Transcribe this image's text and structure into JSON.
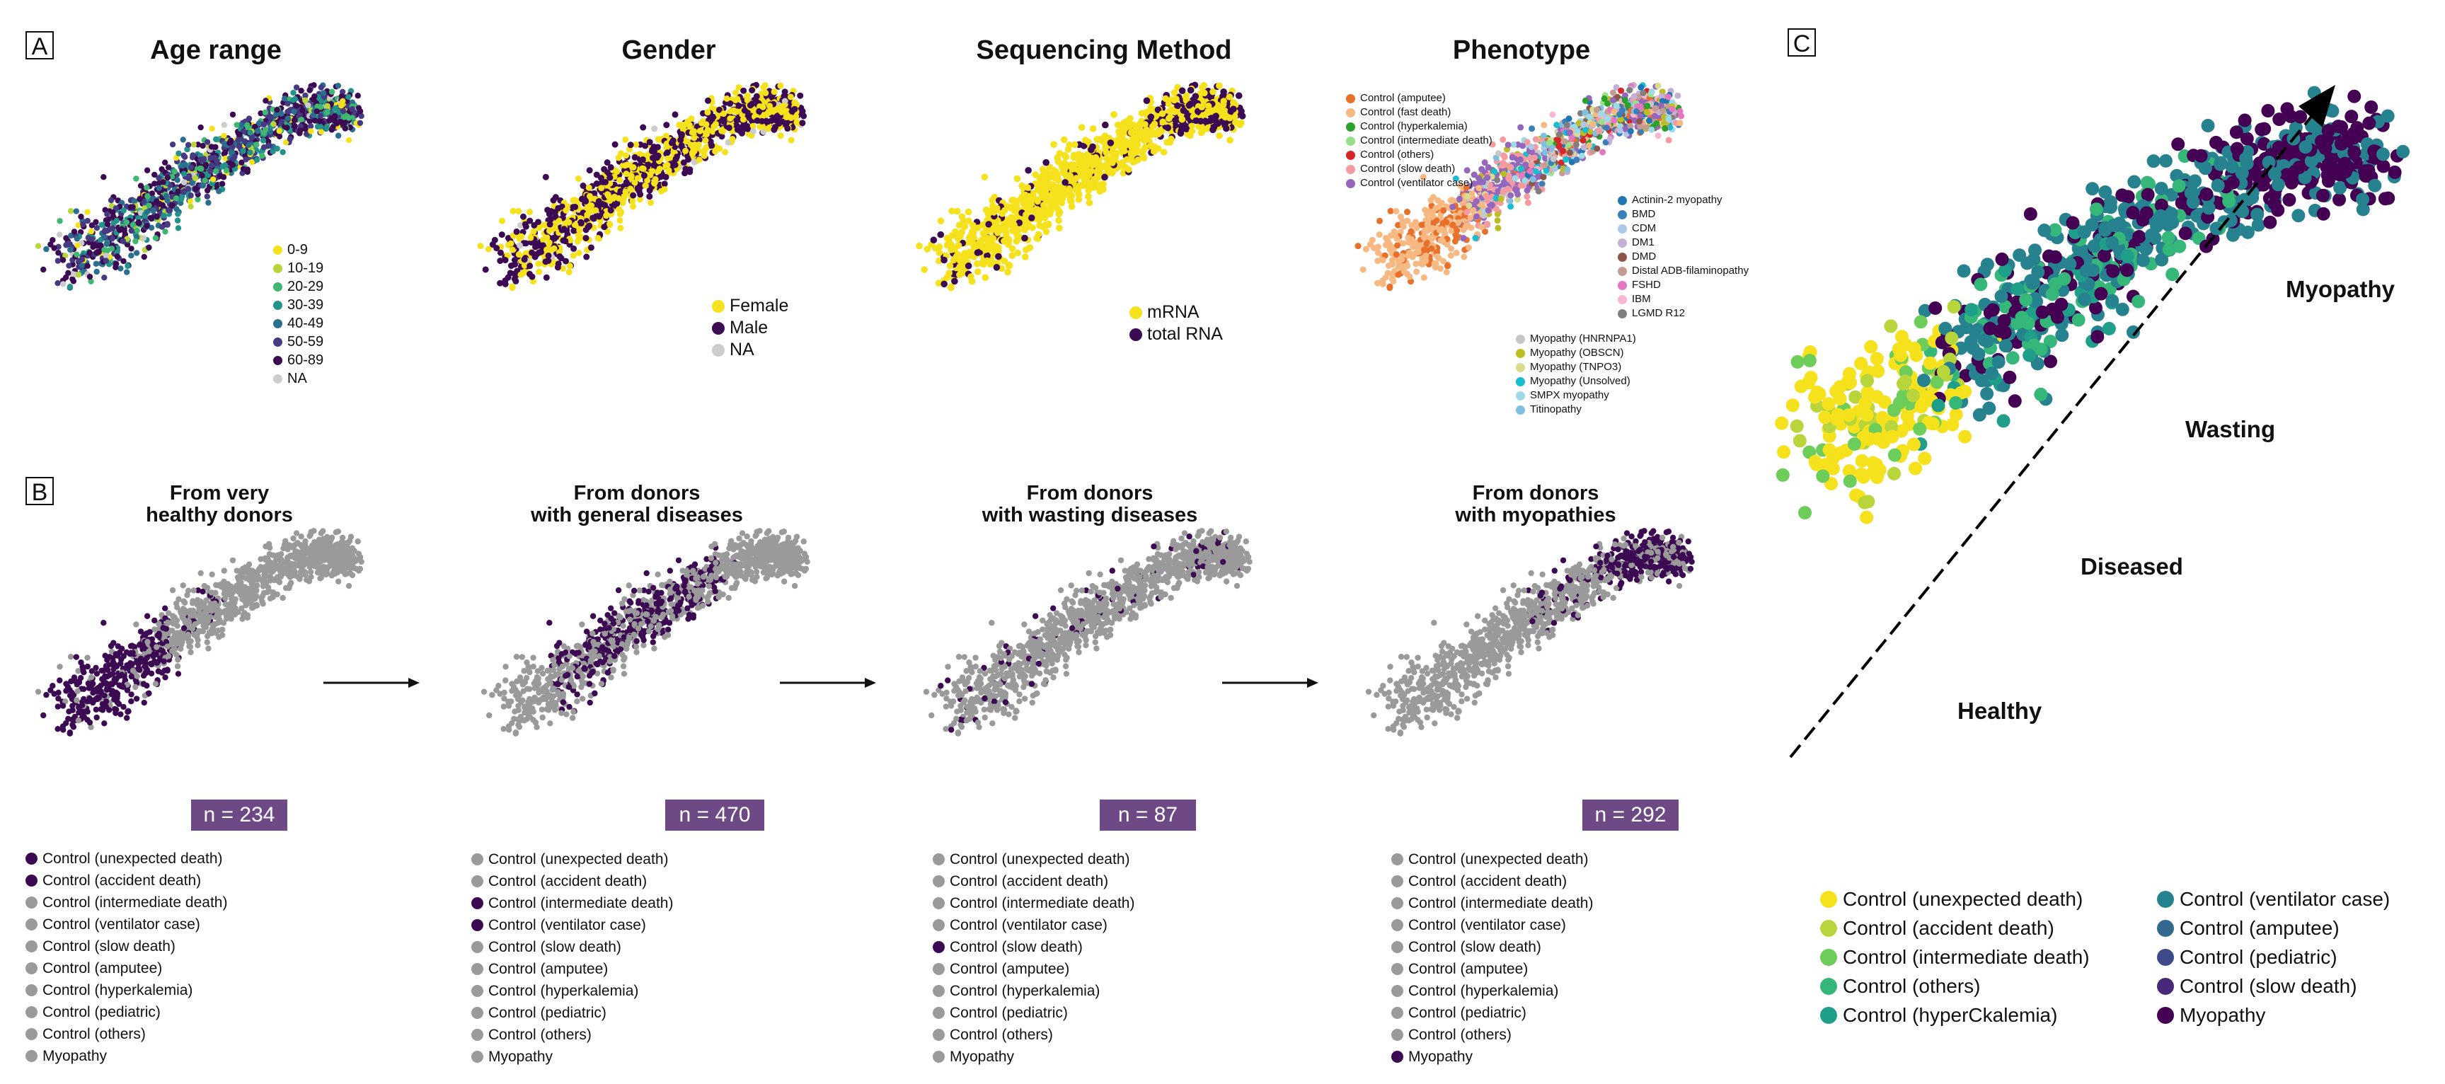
{
  "panel_letters": {
    "a": "A",
    "b": "B",
    "c": "C"
  },
  "panel_a": {
    "titles": {
      "age": "Age range",
      "gender": "Gender",
      "seq": "Sequencing Method",
      "phenotype": "Phenotype"
    },
    "age_legend": [
      {
        "label": "0-9",
        "color": "#f5e11c"
      },
      {
        "label": "10-19",
        "color": "#b8d63b"
      },
      {
        "label": "20-29",
        "color": "#3fb771"
      },
      {
        "label": "30-39",
        "color": "#21938a"
      },
      {
        "label": "40-49",
        "color": "#2b6f8e"
      },
      {
        "label": "50-59",
        "color": "#463a83"
      },
      {
        "label": "60-89",
        "color": "#3c0a52"
      },
      {
        "label": "NA",
        "color": "#cccccc"
      }
    ],
    "gender_legend": [
      {
        "label": "Female",
        "color": "#f5e11c"
      },
      {
        "label": "Male",
        "color": "#3c0a52"
      },
      {
        "label": "NA",
        "color": "#cccccc"
      }
    ],
    "seq_legend": [
      {
        "label": "mRNA",
        "color": "#f5e11c"
      },
      {
        "label": "total RNA",
        "color": "#3c0a52"
      }
    ],
    "phenotype_legend_1": [
      {
        "label": "Control (amputee)",
        "color": "#e8702a"
      },
      {
        "label": "Control (fast death)",
        "color": "#f7b882"
      },
      {
        "label": "Control (hyperkalemia)",
        "color": "#2ba02b"
      },
      {
        "label": "Control (intermediate death)",
        "color": "#98df8a"
      },
      {
        "label": "Control (others)",
        "color": "#d62728"
      },
      {
        "label": "Control (slow death)",
        "color": "#f59aa0"
      },
      {
        "label": "Control (ventilator case)",
        "color": "#9467bd"
      }
    ],
    "phenotype_legend_2": [
      {
        "label": "Actinin-2 myopathy",
        "color": "#1f77b4"
      },
      {
        "label": "BMD",
        "color": "#3b7fb8"
      },
      {
        "label": "CDM",
        "color": "#aec7e8"
      },
      {
        "label": "DM1",
        "color": "#c5b0d5"
      },
      {
        "label": "DMD",
        "color": "#8c564b"
      },
      {
        "label": "Distal ADB-filaminopathy",
        "color": "#c49c94"
      },
      {
        "label": "FSHD",
        "color": "#e377c2"
      },
      {
        "label": "IBM",
        "color": "#f7b6d2"
      },
      {
        "label": "LGMD R12",
        "color": "#7f7f7f"
      }
    ],
    "phenotype_legend_3": [
      {
        "label": "Myopathy (HNRNPA1)",
        "color": "#c7c7c7"
      },
      {
        "label": "Myopathy (OBSCN)",
        "color": "#bcbd22"
      },
      {
        "label": "Myopathy (TNPO3)",
        "color": "#dbdb8d"
      },
      {
        "label": "Myopathy (Unsolved)",
        "color": "#17becf"
      },
      {
        "label": "SMPX myopathy",
        "color": "#9edae5"
      },
      {
        "label": "Titinopathy",
        "color": "#7fbfdf"
      }
    ]
  },
  "panel_b": {
    "titles": [
      {
        "line1": "From very",
        "line2": "healthy donors"
      },
      {
        "line1": "From donors",
        "line2": "with general diseases"
      },
      {
        "line1": "From donors",
        "line2": "with wasting diseases"
      },
      {
        "line1": "From donors",
        "line2": "with myopathies"
      }
    ],
    "counts": [
      "n = 234",
      "n = 470",
      "n = 87",
      "n = 292"
    ],
    "legend_labels": [
      "Control (unexpected death)",
      "Control (accident death)",
      "Control (intermediate death)",
      "Control (ventilator case)",
      "Control (slow death)",
      "Control (amputee)",
      "Control (hyperkalemia)",
      "Control (pediatric)",
      "Control (others)",
      "Myopathy"
    ],
    "legend_labels_panel1": [
      "Control (unexpected death)",
      "Control (accident death)",
      "Control (intermediate death)",
      "Control (ventilator case)",
      "Control (slow death)",
      "Control (amputee)",
      "Control (hyperkalemia)",
      "Control (pediatric)",
      "Control (others)",
      "Myopathy"
    ],
    "highlight": [
      [
        0,
        1
      ],
      [
        2,
        3
      ],
      [
        4
      ],
      [
        9
      ]
    ],
    "colors": {
      "active": "#3c0a52",
      "inactive": "#9a9a9a"
    }
  },
  "panel_c": {
    "labels": {
      "myopathy": "Myopathy",
      "wasting": "Wasting",
      "diseased": "Diseased",
      "healthy": "Healthy"
    },
    "legend_left": [
      {
        "label": "Control (unexpected death)",
        "color": "#f5e11c"
      },
      {
        "label": "Control (accident death)",
        "color": "#b8d63b"
      },
      {
        "label": "Control (intermediate death)",
        "color": "#6ccd5a"
      },
      {
        "label": "Control (others)",
        "color": "#35b779"
      },
      {
        "label": "Control (hyperCkalemia)",
        "color": "#1f9e89"
      }
    ],
    "legend_right": [
      {
        "label": "Control (ventilator case)",
        "color": "#26828e"
      },
      {
        "label": "Control (amputee)",
        "color": "#31688e"
      },
      {
        "label": "Control (pediatric)",
        "color": "#3e4a89"
      },
      {
        "label": "Control (slow death)",
        "color": "#482878"
      },
      {
        "label": "Myopathy",
        "color": "#440154"
      }
    ]
  }
}
